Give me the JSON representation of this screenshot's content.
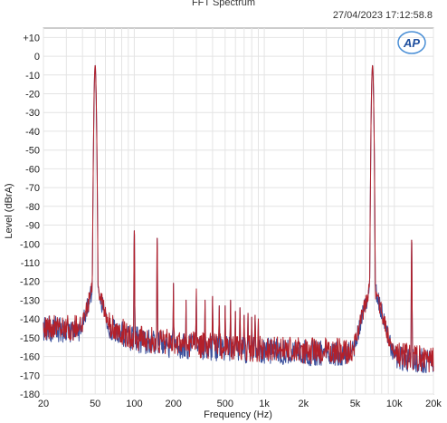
{
  "header": {
    "title": "FFT Spectrum",
    "timestamp": "27/04/2023 17:12:58.8",
    "logo_text": "AP"
  },
  "chart_data": {
    "type": "line",
    "title": "FFT Spectrum",
    "xlabel": "Frequency (Hz)",
    "ylabel": "Level (dBrA)",
    "x_scale": "log",
    "xlim": [
      20,
      20000
    ],
    "ylim": [
      -180,
      15
    ],
    "grid": true,
    "x_ticks": [
      20,
      50,
      100,
      200,
      500,
      1000,
      2000,
      5000,
      10000,
      20000
    ],
    "x_tick_labels": [
      "20",
      "50",
      "100",
      "200",
      "500",
      "1k",
      "2k",
      "5k",
      "10k",
      "20k"
    ],
    "y_ticks": [
      10,
      0,
      -10,
      -20,
      -30,
      -40,
      -50,
      -60,
      -70,
      -80,
      -90,
      -100,
      -110,
      -120,
      -130,
      -140,
      -150,
      -160,
      -170,
      -180
    ],
    "y_tick_labels": [
      "+10",
      "0",
      "-10",
      "-20",
      "-30",
      "-40",
      "-50",
      "-60",
      "-70",
      "-80",
      "-90",
      "-100",
      "-110",
      "-120",
      "-130",
      "-140",
      "-150",
      "-160",
      "-170",
      "-180"
    ],
    "series": [
      {
        "color": "#3a4f9c",
        "noise_floor": [
          [
            20,
            -145
          ],
          [
            40,
            -146
          ],
          [
            47,
            -140
          ],
          [
            60,
            -143
          ],
          [
            100,
            -151
          ],
          [
            200,
            -154
          ],
          [
            500,
            -156
          ],
          [
            1000,
            -157
          ],
          [
            2000,
            -158
          ],
          [
            5000,
            -158
          ],
          [
            10000,
            -160
          ],
          [
            20000,
            -163
          ]
        ],
        "peaks": [
          [
            50,
            -5
          ],
          [
            100,
            -93
          ],
          [
            150,
            -97
          ],
          [
            200,
            -121
          ],
          [
            250,
            -130
          ],
          [
            300,
            -124
          ],
          [
            350,
            -130
          ],
          [
            400,
            -128
          ],
          [
            450,
            -133
          ],
          [
            500,
            -133
          ],
          [
            550,
            -130
          ],
          [
            600,
            -136
          ],
          [
            650,
            -134
          ],
          [
            700,
            -138
          ],
          [
            750,
            -137
          ],
          [
            800,
            -139
          ],
          [
            850,
            -138
          ],
          [
            900,
            -140
          ],
          [
            6800,
            -5
          ],
          [
            13600,
            -98
          ]
        ]
      },
      {
        "color": "#b3202a",
        "noise_floor": [
          [
            20,
            -144
          ],
          [
            40,
            -145
          ],
          [
            47,
            -139
          ],
          [
            60,
            -142
          ],
          [
            100,
            -150
          ],
          [
            200,
            -153
          ],
          [
            500,
            -155
          ],
          [
            1000,
            -156
          ],
          [
            2000,
            -157
          ],
          [
            5000,
            -157
          ],
          [
            10000,
            -159
          ],
          [
            20000,
            -162
          ]
        ],
        "peaks": [
          [
            50,
            -5
          ],
          [
            100,
            -93
          ],
          [
            150,
            -97
          ],
          [
            200,
            -121
          ],
          [
            250,
            -130
          ],
          [
            300,
            -124
          ],
          [
            350,
            -130
          ],
          [
            400,
            -128
          ],
          [
            450,
            -133
          ],
          [
            500,
            -133
          ],
          [
            550,
            -130
          ],
          [
            600,
            -136
          ],
          [
            650,
            -134
          ],
          [
            700,
            -138
          ],
          [
            750,
            -137
          ],
          [
            800,
            -139
          ],
          [
            850,
            -138
          ],
          [
            900,
            -140
          ],
          [
            6800,
            -5
          ],
          [
            13600,
            -98
          ]
        ]
      }
    ]
  }
}
